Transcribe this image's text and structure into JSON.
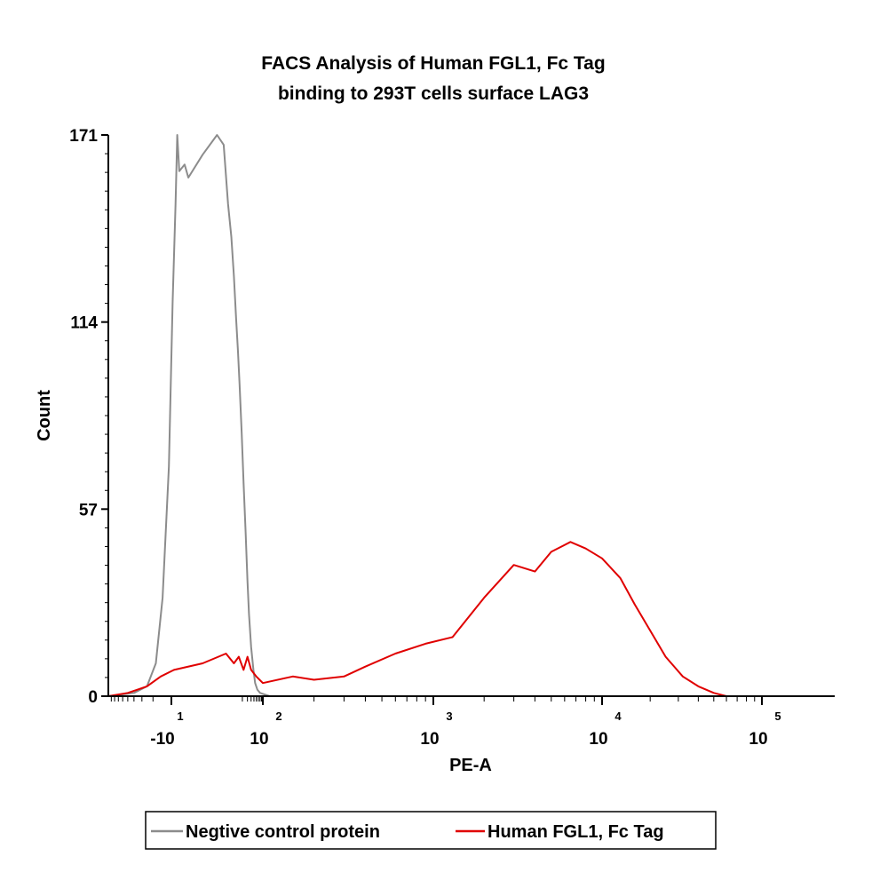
{
  "chart_data": {
    "type": "line",
    "title": "FACS Analysis of Human FGL1, Fc Tag",
    "subtitle": "binding to 293T cells surface LAG3",
    "xlabel": "PE-A",
    "ylabel": "Count",
    "ylim": [
      0,
      171
    ],
    "y_ticks": [
      "0",
      "57",
      "114",
      "171"
    ],
    "x_scale": "biexponential",
    "x_ticks": [
      {
        "base": "-10",
        "exp": "1"
      },
      {
        "base": "10",
        "exp": "2"
      },
      {
        "base": "10",
        "exp": "3"
      },
      {
        "base": "10",
        "exp": "4"
      },
      {
        "base": "10",
        "exp": "5"
      }
    ],
    "legend_position": "bottom-center",
    "grid": false,
    "series": [
      {
        "name": "Negtive control protein",
        "color": "#8c8c8c",
        "points": [
          [
            -100,
            0
          ],
          [
            -40,
            1
          ],
          [
            -25,
            3
          ],
          [
            -18,
            10
          ],
          [
            -14,
            30
          ],
          [
            -11,
            70
          ],
          [
            -9,
            120
          ],
          [
            -7,
            150
          ],
          [
            -6,
            171
          ],
          [
            -5,
            160
          ],
          [
            -3,
            162
          ],
          [
            -2,
            158
          ],
          [
            0,
            165
          ],
          [
            2,
            171
          ],
          [
            4,
            168
          ],
          [
            6,
            150
          ],
          [
            8,
            140
          ],
          [
            10,
            128
          ],
          [
            12,
            115
          ],
          [
            14,
            105
          ],
          [
            16,
            95
          ],
          [
            19,
            80
          ],
          [
            22,
            65
          ],
          [
            26,
            50
          ],
          [
            30,
            35
          ],
          [
            34,
            25
          ],
          [
            40,
            15
          ],
          [
            48,
            8
          ],
          [
            55,
            4
          ],
          [
            65,
            2
          ],
          [
            80,
            1
          ],
          [
            110,
            0
          ],
          [
            200,
            0
          ]
        ]
      },
      {
        "name": "Human FGL1, Fc Tag",
        "color": "#e00000",
        "points": [
          [
            -100,
            0
          ],
          [
            -50,
            1
          ],
          [
            -35,
            2
          ],
          [
            -25,
            3
          ],
          [
            -15,
            6
          ],
          [
            -8,
            8
          ],
          [
            0,
            10
          ],
          [
            5,
            13
          ],
          [
            10,
            10
          ],
          [
            15,
            12
          ],
          [
            22,
            8
          ],
          [
            30,
            12
          ],
          [
            40,
            8
          ],
          [
            60,
            6
          ],
          [
            100,
            4
          ],
          [
            150,
            6
          ],
          [
            200,
            5
          ],
          [
            300,
            6
          ],
          [
            400,
            9
          ],
          [
            600,
            13
          ],
          [
            900,
            16
          ],
          [
            1300,
            18
          ],
          [
            2000,
            30
          ],
          [
            3000,
            40
          ],
          [
            4000,
            38
          ],
          [
            5000,
            44
          ],
          [
            6500,
            47
          ],
          [
            8000,
            45
          ],
          [
            10000,
            42
          ],
          [
            13000,
            36
          ],
          [
            16000,
            28
          ],
          [
            20000,
            20
          ],
          [
            25000,
            12
          ],
          [
            32000,
            6
          ],
          [
            40000,
            3
          ],
          [
            50000,
            1
          ],
          [
            60000,
            0
          ],
          [
            100000,
            0
          ]
        ]
      }
    ]
  }
}
